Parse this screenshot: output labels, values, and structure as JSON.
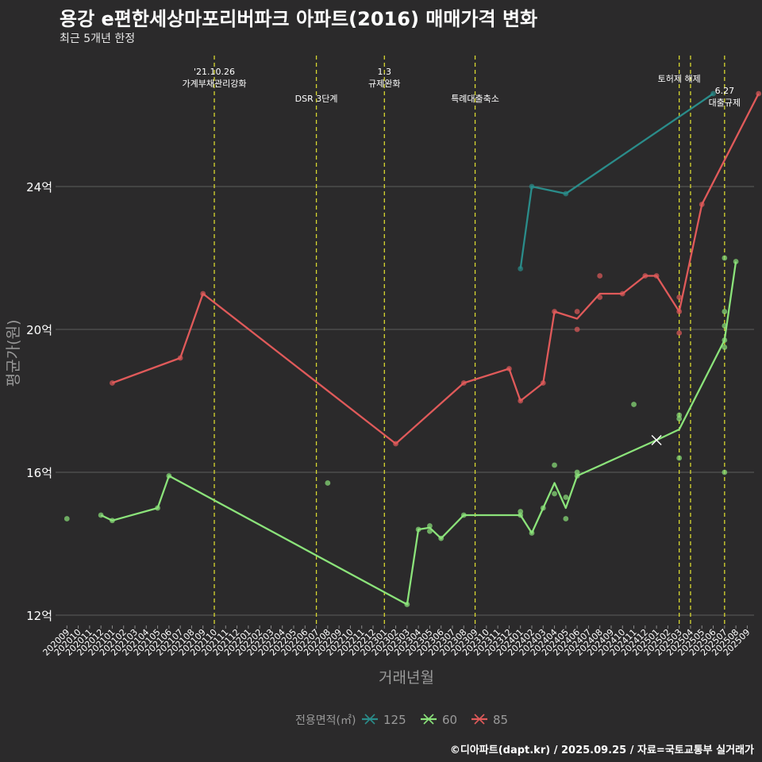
{
  "title": "용강 e편한세상마포리버파크 아파트(2016) 매매가격 변화",
  "subtitle": "최근 5개년 한정",
  "caption": "©디아파트(dapt.kr) / 2025.09.25 / 자료=국토교통부 실거래가",
  "colors": {
    "s125": "#2a8c8a",
    "s60": "#8be37a",
    "s85": "#e05a5a",
    "vline": "#d8d830"
  },
  "chart_data": {
    "type": "line",
    "xlabel": "거래년월",
    "ylabel": "평균가(원)",
    "ylim": [
      11.5,
      27.2
    ],
    "yticks": [
      12,
      16,
      20,
      24
    ],
    "ytick_labels": [
      "12억",
      "16억",
      "20억",
      "24억"
    ],
    "xticks": [
      "202009",
      "202010",
      "202011",
      "202012",
      "202101",
      "202102",
      "202103",
      "202104",
      "202105",
      "202106",
      "202107",
      "202108",
      "202109",
      "202110",
      "202111",
      "202112",
      "202201",
      "202202",
      "202203",
      "202204",
      "202205",
      "202206",
      "202207",
      "202208",
      "202209",
      "202210",
      "202211",
      "202212",
      "202301",
      "202302",
      "202303",
      "202304",
      "202305",
      "202306",
      "202307",
      "202308",
      "202309",
      "202310",
      "202311",
      "202312",
      "202401",
      "202402",
      "202403",
      "202404",
      "202405",
      "202406",
      "202407",
      "202408",
      "202409",
      "202410",
      "202411",
      "202412",
      "202501",
      "202502",
      "202503",
      "202504",
      "202505",
      "202506",
      "202507",
      "202508",
      "202509"
    ],
    "legend_title": "전용면적(㎡)",
    "legend_position": "bottom",
    "events": [
      {
        "x": 13,
        "lines": [
          "'21.10.26",
          "가계부채관리강화"
        ],
        "row": 1
      },
      {
        "x": 22,
        "lines": [
          "DSR 3단계"
        ],
        "row": 2
      },
      {
        "x": 28,
        "lines": [
          "1.3",
          "규제완화"
        ],
        "row": 1
      },
      {
        "x": 36,
        "lines": [
          "특례대출축소"
        ],
        "row": 2
      },
      {
        "x": 54,
        "lines": [
          "토허제 해제"
        ],
        "row": 3
      },
      {
        "x": 55,
        "lines": [],
        "row": 0
      },
      {
        "x": 58,
        "lines": [
          "6.27",
          "대출규제"
        ],
        "row": 4
      }
    ],
    "series": [
      {
        "name": "125",
        "line": [
          [
            40,
            21.7
          ],
          [
            41,
            24.0
          ],
          [
            44,
            23.8
          ],
          [
            57,
            26.6
          ]
        ],
        "points": [
          [
            40,
            21.7
          ],
          [
            41,
            24.0
          ],
          [
            44,
            23.8
          ],
          [
            57,
            26.6
          ]
        ]
      },
      {
        "name": "60",
        "line": [
          [
            3,
            14.8
          ],
          [
            4,
            14.65
          ],
          [
            8,
            15.0
          ],
          [
            9,
            15.9
          ],
          [
            30,
            12.3
          ],
          [
            31,
            14.4
          ],
          [
            32,
            14.45
          ],
          [
            33,
            14.15
          ],
          [
            35,
            14.8
          ],
          [
            40,
            14.8
          ],
          [
            41,
            14.3
          ],
          [
            42,
            15.0
          ],
          [
            43,
            15.7
          ],
          [
            44,
            15.0
          ],
          [
            45,
            15.9
          ],
          [
            52,
            16.9
          ],
          [
            54,
            17.2
          ],
          [
            58,
            19.7
          ],
          [
            59,
            21.9
          ]
        ],
        "points": [
          [
            0,
            14.7
          ],
          [
            3,
            14.8
          ],
          [
            4,
            14.65
          ],
          [
            8,
            15.0
          ],
          [
            9,
            15.9
          ],
          [
            23,
            15.7
          ],
          [
            30,
            12.3
          ],
          [
            31,
            14.4
          ],
          [
            32,
            14.5
          ],
          [
            32,
            14.35
          ],
          [
            33,
            14.15
          ],
          [
            35,
            14.8
          ],
          [
            40,
            14.9
          ],
          [
            40,
            14.8
          ],
          [
            41,
            14.3
          ],
          [
            42,
            15.0
          ],
          [
            43,
            15.4
          ],
          [
            43,
            16.2
          ],
          [
            44,
            14.7
          ],
          [
            44,
            15.3
          ],
          [
            45,
            15.9
          ],
          [
            45,
            16.0
          ],
          [
            50,
            17.9
          ],
          [
            54,
            17.6
          ],
          [
            54,
            17.5
          ],
          [
            54,
            16.4
          ],
          [
            58,
            22.0
          ],
          [
            58,
            20.5
          ],
          [
            58,
            20.1
          ],
          [
            58,
            19.7
          ],
          [
            58,
            19.5
          ],
          [
            58,
            16.0
          ],
          [
            59,
            21.9
          ]
        ],
        "cross": [
          52,
          16.9
        ]
      },
      {
        "name": "85",
        "line": [
          [
            4,
            18.5
          ],
          [
            10,
            19.2
          ],
          [
            12,
            21.0
          ],
          [
            29,
            16.8
          ],
          [
            35,
            18.5
          ],
          [
            39,
            18.9
          ],
          [
            40,
            18.0
          ],
          [
            42,
            18.5
          ],
          [
            43,
            20.5
          ],
          [
            45,
            20.3
          ],
          [
            47,
            21.0
          ],
          [
            49,
            21.0
          ],
          [
            51,
            21.5
          ],
          [
            52,
            21.5
          ],
          [
            54,
            20.5
          ],
          [
            56,
            23.5
          ],
          [
            61,
            26.6
          ]
        ],
        "points": [
          [
            4,
            18.5
          ],
          [
            10,
            19.2
          ],
          [
            12,
            21.0
          ],
          [
            29,
            16.8
          ],
          [
            35,
            18.5
          ],
          [
            39,
            18.9
          ],
          [
            40,
            18.0
          ],
          [
            42,
            18.5
          ],
          [
            43,
            20.5
          ],
          [
            45,
            20.5
          ],
          [
            45,
            20.0
          ],
          [
            47,
            21.5
          ],
          [
            47,
            20.9
          ],
          [
            49,
            21.0
          ],
          [
            51,
            21.5
          ],
          [
            52,
            21.5
          ],
          [
            54,
            20.9
          ],
          [
            54,
            19.9
          ],
          [
            54,
            20.5
          ],
          [
            56,
            23.5
          ],
          [
            61,
            26.6
          ]
        ]
      }
    ]
  }
}
